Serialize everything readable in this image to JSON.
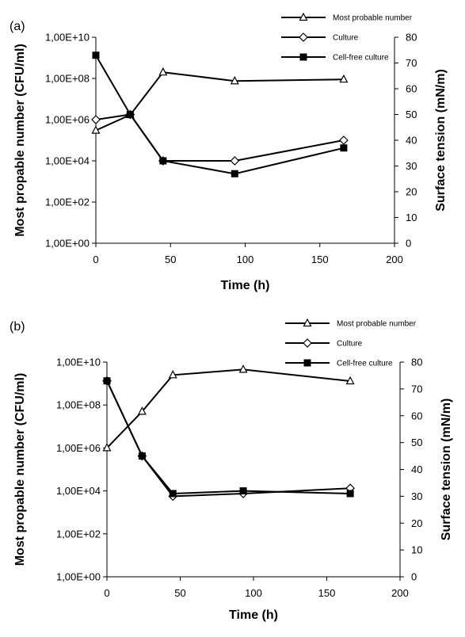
{
  "chart_data": [
    {
      "type": "line",
      "panel_label": "(a)",
      "x": [
        0,
        23,
        45,
        93,
        166
      ],
      "xlabel": "Time (h)",
      "xlim": [
        0,
        200
      ],
      "xticks": [
        "0",
        "50",
        "100",
        "150",
        "200"
      ],
      "ylabel_left": "Most propable number (CFU/ml)",
      "ylim_left_log10": [
        0,
        10
      ],
      "yticks_left": [
        "1,00E+00",
        "1,00E+02",
        "1,00E+04",
        "1,00E+06",
        "1,00E+08",
        "1,00E+10"
      ],
      "ylabel_right": "Surface tension (mN/m)",
      "ylim_right": [
        0,
        80
      ],
      "yticks_right": [
        "0",
        "10",
        "20",
        "30",
        "40",
        "50",
        "60",
        "70",
        "80"
      ],
      "grid": false,
      "legend_position": "top-right",
      "series": [
        {
          "name": "Most probable number",
          "axis": "left",
          "marker": "triangle",
          "values": [
            300000,
            1700000,
            200000000,
            75000000,
            90000000
          ]
        },
        {
          "name": "Culture",
          "axis": "right",
          "marker": "diamond",
          "values": [
            48,
            50,
            32,
            32,
            40
          ]
        },
        {
          "name": "Cell-free culture",
          "axis": "right",
          "marker": "square",
          "values": [
            73,
            50,
            32,
            27,
            37
          ]
        }
      ]
    },
    {
      "type": "line",
      "panel_label": "(b)",
      "x": [
        0,
        24,
        45,
        93,
        166
      ],
      "xlabel": "Time (h)",
      "xlim": [
        0,
        200
      ],
      "xticks": [
        "0",
        "50",
        "100",
        "150",
        "200"
      ],
      "ylabel_left": "Most propable number (CFU/ml)",
      "ylim_left_log10": [
        0,
        10
      ],
      "yticks_left": [
        "1,00E+00",
        "1,00E+02",
        "1,00E+04",
        "1,00E+06",
        "1,00E+08",
        "1,00E+10"
      ],
      "ylabel_right": "Surface tension (mN/m)",
      "ylim_right": [
        0,
        80
      ],
      "yticks_right": [
        "0",
        "10",
        "20",
        "30",
        "40",
        "50",
        "60",
        "70",
        "80"
      ],
      "grid": false,
      "legend_position": "top-right",
      "series": [
        {
          "name": "Most probable number",
          "axis": "left",
          "marker": "triangle",
          "values": [
            1000000,
            50000000,
            2500000000,
            4500000000,
            1300000000
          ]
        },
        {
          "name": "Culture",
          "axis": "right",
          "marker": "diamond",
          "values": [
            73,
            45,
            30,
            31,
            33
          ]
        },
        {
          "name": "Cell-free culture",
          "axis": "right",
          "marker": "square",
          "values": [
            73,
            45,
            31,
            32,
            31
          ]
        }
      ]
    }
  ]
}
